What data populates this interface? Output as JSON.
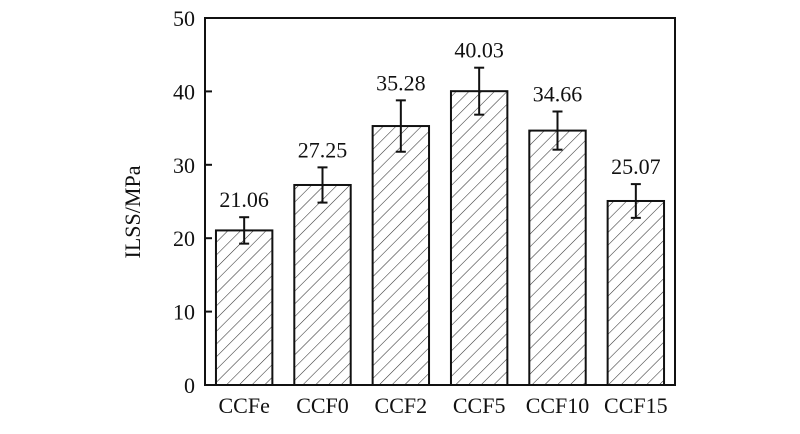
{
  "chart_data": {
    "type": "bar",
    "title": "",
    "xlabel": "",
    "ylabel": "ILSS/MPa",
    "categories": [
      "CCFe",
      "CCF0",
      "CCF2",
      "CCF5",
      "CCF10",
      "CCF15"
    ],
    "values": [
      21.06,
      27.25,
      35.28,
      40.03,
      34.66,
      25.07
    ],
    "value_labels": [
      "21.06",
      "27.25",
      "35.28",
      "40.03",
      "34.66",
      "25.07"
    ],
    "error": [
      1.8,
      2.4,
      3.5,
      3.2,
      2.6,
      2.3
    ],
    "ylim": [
      0,
      50
    ],
    "yticks": [
      0,
      10,
      20,
      30,
      40,
      50
    ],
    "ytick_labels": [
      "0",
      "10",
      "20",
      "30",
      "40",
      "50"
    ],
    "bar_fill": "hatched",
    "grid": false,
    "colors": {
      "bar_stroke": "#111111",
      "hatch": "#333333",
      "background": "#ffffff"
    }
  }
}
